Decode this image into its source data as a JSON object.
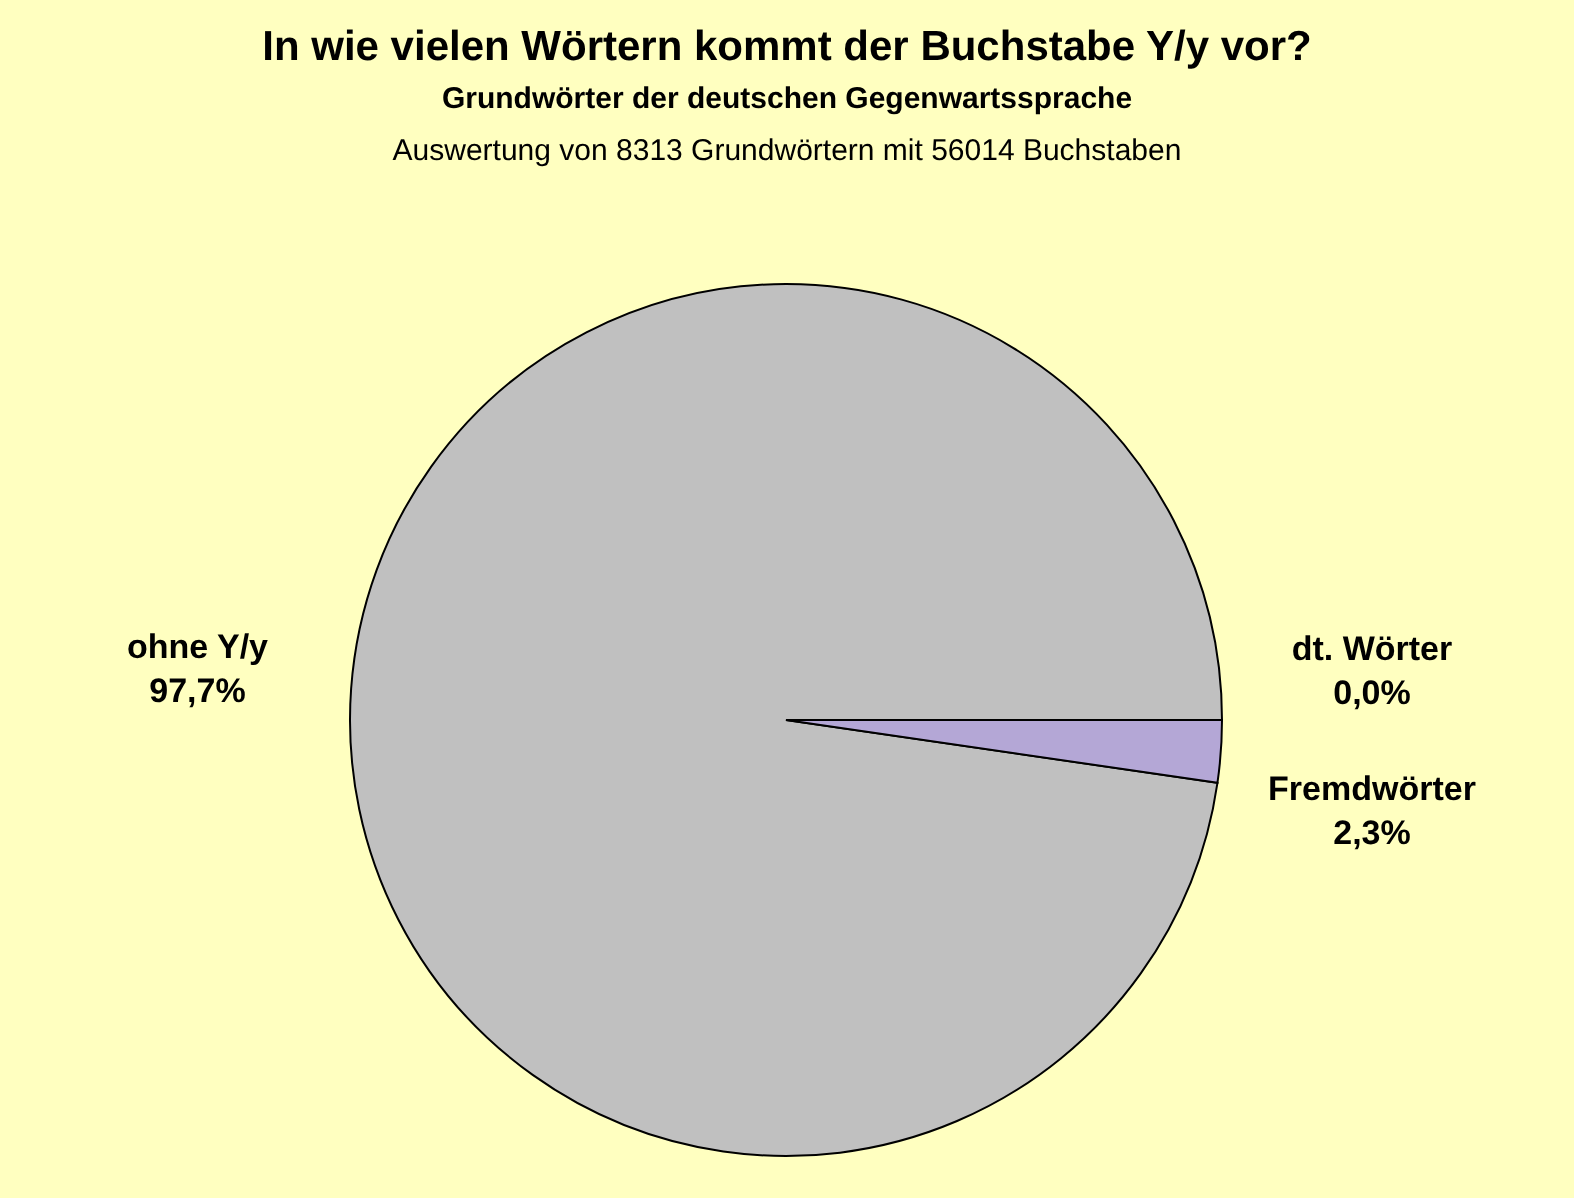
{
  "chart_data": {
    "type": "pie",
    "title": "In wie vielen Wörtern kommt der Buchstabe Y/y vor?",
    "subtitle": "Grundwörter der deutschen Gegenwartssprache",
    "annotations": [
      "Auswertung von 8313 Grundwörtern mit 56014 Buchstaben"
    ],
    "categories": [
      "ohne Y/y",
      "dt. Wörter",
      "Fremdwörter"
    ],
    "values": [
      97.7,
      0.0,
      2.3
    ],
    "value_labels": [
      "97,7%",
      "0,0%",
      "2,3%"
    ],
    "colors": [
      "#c0c0c0",
      "#9999ff",
      "#b4a7d6"
    ],
    "legend": false
  }
}
